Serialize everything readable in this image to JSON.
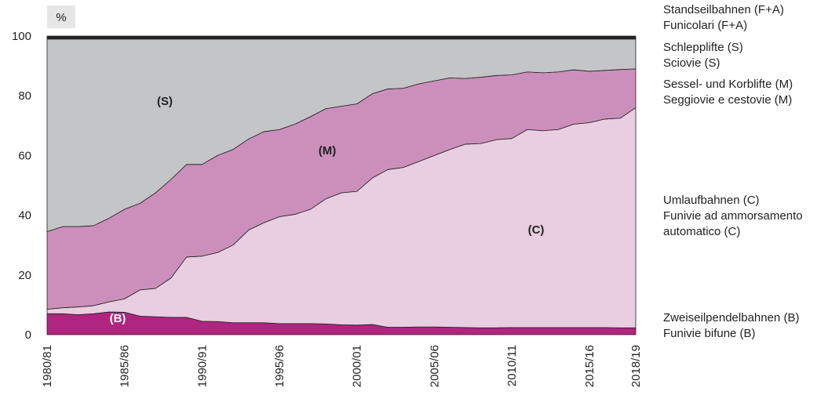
{
  "chart_data": {
    "type": "stacked_area",
    "ylabel": "%",
    "categories": [
      "1980/81",
      null,
      null,
      null,
      null,
      "1985/86",
      null,
      null,
      null,
      null,
      "1990/91",
      null,
      null,
      null,
      null,
      "1995/96",
      null,
      null,
      null,
      null,
      "2000/01",
      null,
      null,
      null,
      null,
      "2005/06",
      null,
      null,
      null,
      null,
      "2010/11",
      null,
      null,
      null,
      null,
      "2015/16",
      null,
      null,
      "2018/19"
    ],
    "ylim": [
      0,
      100
    ],
    "yticks": [
      0,
      20,
      40,
      60,
      80,
      100
    ],
    "series": [
      {
        "name": "Zweiseilpendelbahnen (B)",
        "name_it": [
          "Funivie bifune (B)"
        ],
        "label": "(B)",
        "color": "#b0257f",
        "values": [
          7,
          7,
          6.7,
          7,
          7.6,
          7.5,
          6.2,
          6,
          5.8,
          5.8,
          4.5,
          4.4,
          4,
          4,
          4,
          3.7,
          3.7,
          3.7,
          3.6,
          3.3,
          3.2,
          3.4,
          2.5,
          2.5,
          2.6,
          2.6,
          2.5,
          2.4,
          2.3,
          2.3,
          2.4,
          2.4,
          2.4,
          2.4,
          2.4,
          2.4,
          2.4,
          2.3,
          2.3
        ]
      },
      {
        "name": "Umlaufbahnen (C)",
        "name_it": [
          "Funivie ad ammorsamento",
          "automatico (C)"
        ],
        "label": "(C)",
        "color": "#e9cde0",
        "values": [
          1.5,
          2,
          2.6,
          2.7,
          3.4,
          4.5,
          8.8,
          9.5,
          13.2,
          20.2,
          21.8,
          23.1,
          26,
          31,
          33.5,
          35.8,
          36.6,
          38.3,
          41.9,
          44.2,
          44.8,
          49.1,
          52.8,
          53.5,
          55.4,
          57.4,
          59.5,
          61.4,
          61.7,
          63,
          63.3,
          66.3,
          65.9,
          66.3,
          68.1,
          68.6,
          69.8,
          70.2,
          73.7
        ]
      },
      {
        "name": "Sessel- und Korblifte (M)",
        "name_it": [
          "Seggiovie e cestovie (M)"
        ],
        "label": "(M)",
        "color": "#cc8fbc",
        "values": [
          26,
          27.2,
          26.9,
          26.8,
          28,
          30,
          29,
          32,
          33,
          31,
          30.7,
          32.5,
          32,
          30.5,
          30.5,
          29.2,
          30.2,
          31,
          30.2,
          29,
          29.3,
          28.2,
          27,
          26.5,
          26,
          25,
          24,
          22,
          22.2,
          21.5,
          21.3,
          19.3,
          19.4,
          19.3,
          18.2,
          17.2,
          16.3,
          16.3,
          13
        ]
      },
      {
        "name": "Schlepplifte (S)",
        "name_it": [
          "Sciovie (S)"
        ],
        "label": "(S)",
        "color": "#c4c5c7",
        "values": [
          64.5,
          62.8,
          62.8,
          62.5,
          60,
          57,
          55,
          51.5,
          47,
          42,
          42,
          39,
          37,
          33.5,
          31,
          30.3,
          28.5,
          26,
          23.3,
          22.5,
          21.7,
          18.3,
          16.7,
          16.5,
          15,
          14,
          13,
          13.2,
          12.8,
          12.2,
          12,
          11,
          11.3,
          11,
          10.3,
          10.8,
          10.5,
          10.2,
          10
        ]
      },
      {
        "name": "Standseilbahnen (F+A)",
        "name_it": [
          "Funicolari (F+A)"
        ],
        "color": "#222222",
        "values": [
          1,
          1,
          1,
          1,
          1,
          1,
          1,
          1,
          1,
          1,
          1,
          1,
          1,
          1,
          1,
          1,
          1,
          1,
          1,
          1,
          1,
          1,
          1,
          1,
          1,
          1,
          1,
          1,
          1,
          1,
          1,
          1,
          1,
          1,
          1,
          1,
          1,
          1,
          1
        ]
      }
    ]
  }
}
